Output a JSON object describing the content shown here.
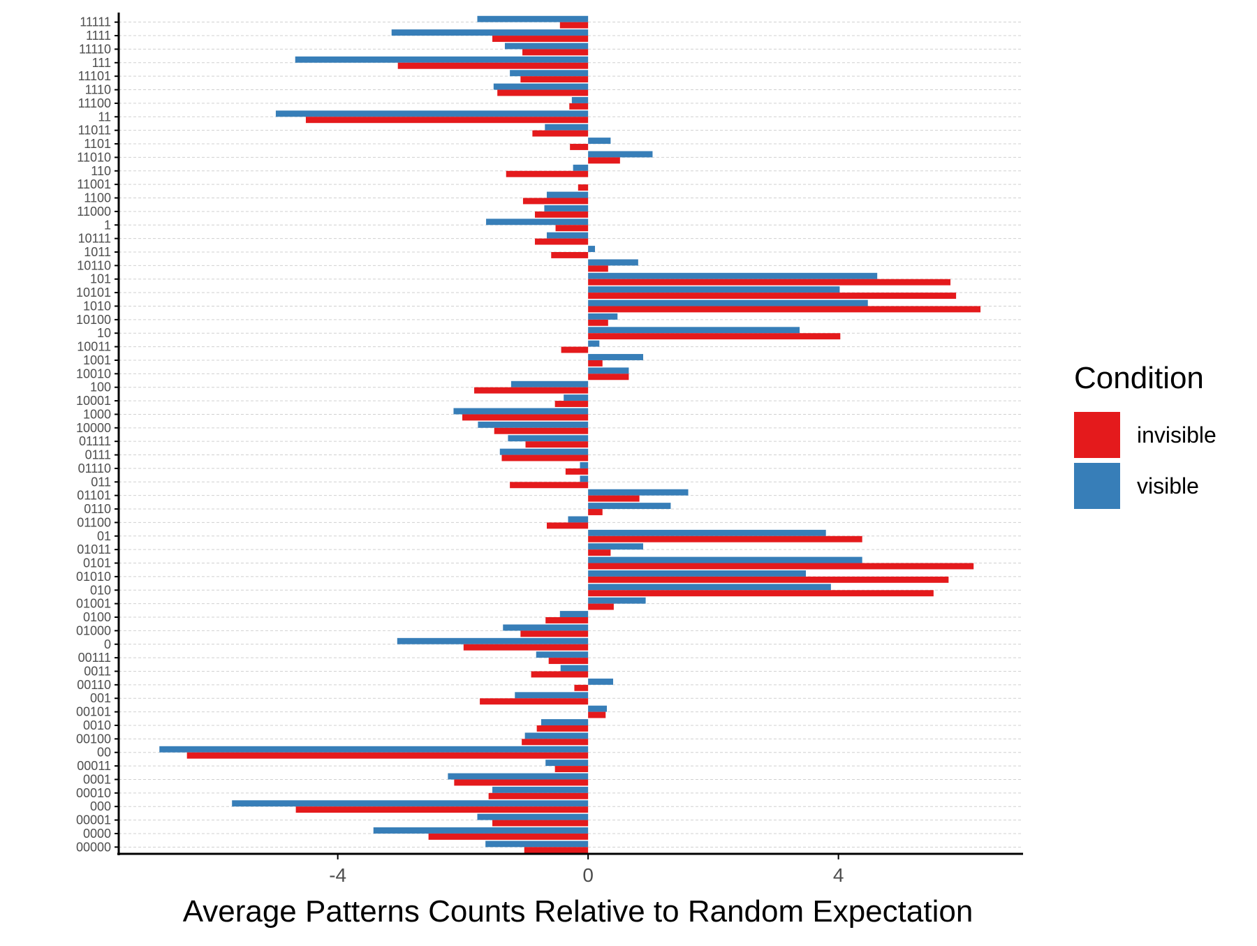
{
  "chart_data": {
    "type": "bar",
    "orientation": "horizontal",
    "title": "",
    "xlabel": "Average Patterns Counts Relative to Random Expectation",
    "ylabel": "",
    "xticks": [
      -4,
      0,
      4
    ],
    "xtick_labels": [
      "-4",
      "0",
      "4"
    ],
    "xlim": [
      -7.5,
      6.95
    ],
    "grid": "horizontal-dashed",
    "legend": {
      "title": "Condition",
      "position": "right",
      "entries": [
        {
          "label": "invisible",
          "color": "#E41A1C"
        },
        {
          "label": "visible",
          "color": "#377EB8"
        }
      ]
    },
    "categories": [
      "11111",
      "1111",
      "11110",
      "111",
      "11101",
      "1110",
      "11100",
      "11",
      "11011",
      "1101",
      "11010",
      "110",
      "11001",
      "1100",
      "11000",
      "1",
      "10111",
      "1011",
      "10110",
      "101",
      "10101",
      "1010",
      "10100",
      "10",
      "10011",
      "1001",
      "10010",
      "100",
      "10001",
      "1000",
      "10000",
      "01111",
      "0111",
      "01110",
      "011",
      "01101",
      "0110",
      "01100",
      "01",
      "01011",
      "0101",
      "01010",
      "010",
      "01001",
      "0100",
      "01000",
      "0",
      "00111",
      "0011",
      "00110",
      "001",
      "00101",
      "0010",
      "00100",
      "00",
      "00011",
      "0001",
      "00010",
      "000",
      "00001",
      "0000",
      "00000"
    ],
    "series": [
      {
        "name": "visible",
        "color": "#377EB8",
        "values": [
          -1.77,
          -3.14,
          -1.33,
          -4.68,
          -1.25,
          -1.51,
          -0.26,
          -4.99,
          -0.69,
          0.36,
          1.03,
          -0.24,
          0.0,
          -0.66,
          -0.7,
          -1.63,
          -0.66,
          0.11,
          0.8,
          4.62,
          4.02,
          4.47,
          0.47,
          3.38,
          0.18,
          0.88,
          0.65,
          -1.23,
          -0.39,
          -2.15,
          -1.76,
          -1.28,
          -1.41,
          -0.13,
          -0.13,
          1.6,
          1.32,
          -0.32,
          3.8,
          0.88,
          4.38,
          3.48,
          3.88,
          0.92,
          -0.45,
          -1.36,
          -3.05,
          -0.83,
          -0.44,
          0.4,
          -1.17,
          0.3,
          -0.75,
          -1.01,
          -6.85,
          -0.68,
          -2.24,
          -1.53,
          -5.69,
          -1.77,
          -3.43,
          -1.64
        ]
      },
      {
        "name": "invisible",
        "color": "#E41A1C",
        "values": [
          -0.45,
          -1.53,
          -1.05,
          -3.04,
          -1.08,
          -1.45,
          -0.3,
          -4.51,
          -0.89,
          -0.29,
          0.51,
          -1.31,
          -0.16,
          -1.04,
          -0.85,
          -0.52,
          -0.85,
          -0.59,
          0.32,
          5.79,
          5.88,
          6.27,
          0.32,
          4.03,
          -0.43,
          0.23,
          0.65,
          -1.82,
          -0.53,
          -2.01,
          -1.5,
          -1.0,
          -1.38,
          -0.36,
          -1.25,
          0.82,
          0.23,
          -0.66,
          4.38,
          0.36,
          6.16,
          5.76,
          5.52,
          0.41,
          -0.68,
          -1.08,
          -1.99,
          -0.63,
          -0.91,
          -0.22,
          -1.73,
          0.28,
          -0.82,
          -1.06,
          -6.41,
          -0.53,
          -2.14,
          -1.59,
          -4.67,
          -1.53,
          -2.55,
          -1.02
        ]
      }
    ]
  }
}
